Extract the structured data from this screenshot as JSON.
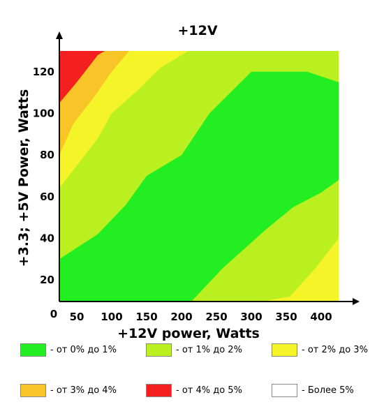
{
  "chart_data": {
    "type": "heatmap",
    "title": "+12V",
    "xlabel": "+12V power, Watts",
    "ylabel": "+3.3; +5V Power, Watts",
    "origin_label": "0",
    "x_ticks": [
      50,
      100,
      150,
      200,
      250,
      300,
      350,
      400
    ],
    "y_ticks": [
      20,
      40,
      60,
      80,
      100,
      120
    ],
    "xlim": [
      25,
      425
    ],
    "ylim": [
      10,
      130
    ],
    "bands": [
      {
        "id": "b0",
        "label": "- от 0% до 1%",
        "color": "#22ee22"
      },
      {
        "id": "b1",
        "label": "- от 1% до 2%",
        "color": "#bbf020"
      },
      {
        "id": "b2",
        "label": "- от 2% до 3%",
        "color": "#f4f428"
      },
      {
        "id": "b3",
        "label": "- от 3% до 4%",
        "color": "#f8c428"
      },
      {
        "id": "b4",
        "label": "- от 4% до 5%",
        "color": "#f42020"
      },
      {
        "id": "b5",
        "label": "- Более 5%",
        "color": "#ffffff"
      }
    ],
    "regions": [
      {
        "band": "b1",
        "points": [
          [
            25,
            10
          ],
          [
            425,
            10
          ],
          [
            425,
            130
          ],
          [
            25,
            130
          ]
        ]
      },
      {
        "band": "b2",
        "points": [
          [
            25,
            64
          ],
          [
            50,
            75
          ],
          [
            80,
            88
          ],
          [
            100,
            100
          ],
          [
            140,
            112
          ],
          [
            170,
            122
          ],
          [
            210,
            130
          ],
          [
            25,
            130
          ]
        ]
      },
      {
        "band": "b2",
        "points": [
          [
            320,
            10
          ],
          [
            425,
            10
          ],
          [
            425,
            40
          ],
          [
            390,
            25
          ],
          [
            355,
            12
          ]
        ]
      },
      {
        "band": "b3",
        "points": [
          [
            25,
            80
          ],
          [
            45,
            95
          ],
          [
            75,
            108
          ],
          [
            100,
            120
          ],
          [
            125,
            130
          ],
          [
            25,
            130
          ]
        ]
      },
      {
        "band": "b4",
        "points": [
          [
            25,
            105
          ],
          [
            50,
            115
          ],
          [
            80,
            128
          ],
          [
            90,
            130
          ],
          [
            25,
            130
          ]
        ]
      },
      {
        "band": "b0",
        "points": [
          [
            25,
            10
          ],
          [
            215,
            10
          ],
          [
            260,
            26
          ],
          [
            320,
            44
          ],
          [
            360,
            55
          ],
          [
            400,
            62
          ],
          [
            425,
            68
          ],
          [
            425,
            115
          ],
          [
            380,
            120
          ],
          [
            300,
            120
          ],
          [
            240,
            100
          ],
          [
            200,
            80
          ],
          [
            150,
            70
          ],
          [
            120,
            56
          ],
          [
            80,
            42
          ],
          [
            25,
            30
          ]
        ]
      }
    ]
  }
}
